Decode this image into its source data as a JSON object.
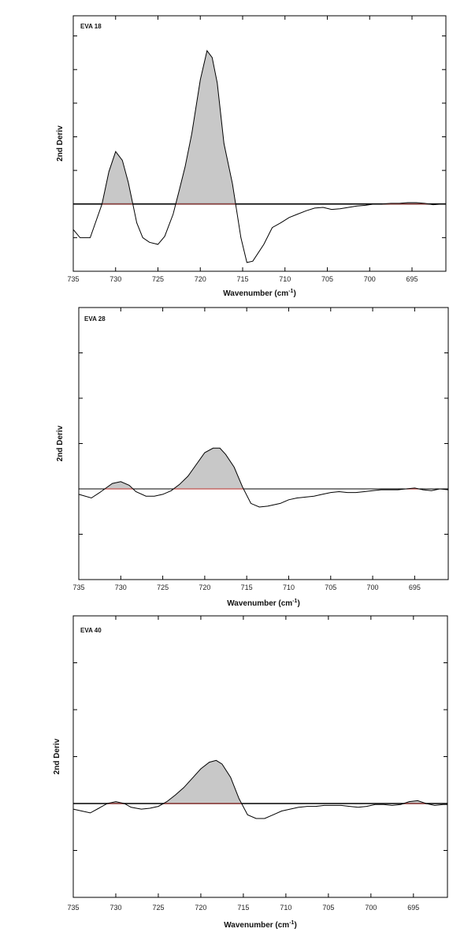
{
  "chart_data": [
    {
      "type": "line",
      "title": "EVA 18",
      "xlabel": "Wavenumber (cm",
      "xlabel_sup": "-1",
      "xlabel_suffix": ")",
      "ylabel": "2nd Deriv",
      "xlim": [
        735,
        691
      ],
      "ylim": [
        -1.0,
        2.8
      ],
      "x_ticks": [
        735,
        730,
        725,
        720,
        715,
        710,
        705,
        700,
        695
      ],
      "y_ticks": [
        -0.5,
        0,
        0.5,
        1.0,
        1.5,
        2.0,
        2.5
      ],
      "baseline": 0,
      "colors": {
        "line": "#000000",
        "fill": "#c8c8c8",
        "baseline_on_fill": "#c0504d"
      },
      "series": [
        {
          "x": [
            735,
            734.2,
            733,
            731.6,
            730.8,
            730,
            729.2,
            728.5,
            727.5,
            726.8,
            726,
            725,
            724.2,
            723.2,
            722.5,
            721.8,
            721,
            720,
            719.2,
            718.6,
            718,
            717.2,
            716.2,
            715.2,
            714.5,
            713.8,
            712.5,
            711.5,
            710.5,
            709.5,
            708.5,
            707.5,
            706.5,
            705.5,
            704.5,
            703.5,
            702.5,
            701.5,
            700.5,
            699.5,
            698.5,
            697.5,
            696.5,
            695.5,
            694.5,
            693.5,
            692.5,
            691.5,
            691
          ],
          "y": [
            -0.38,
            -0.5,
            -0.5,
            0.0,
            0.48,
            0.78,
            0.65,
            0.32,
            -0.28,
            -0.5,
            -0.57,
            -0.6,
            -0.48,
            -0.15,
            0.2,
            0.55,
            1.05,
            1.85,
            2.28,
            2.18,
            1.8,
            0.9,
            0.3,
            -0.5,
            -0.87,
            -0.85,
            -0.6,
            -0.35,
            -0.28,
            -0.2,
            -0.15,
            -0.1,
            -0.06,
            -0.05,
            -0.08,
            -0.07,
            -0.05,
            -0.03,
            -0.02,
            0.0,
            0.0,
            0.01,
            0.01,
            0.02,
            0.02,
            0.01,
            -0.01,
            0.0,
            0.0
          ]
        }
      ]
    },
    {
      "type": "line",
      "title": "EVA 28",
      "xlabel": "Wavenumber (cm",
      "xlabel_sup": "-1",
      "xlabel_suffix": ")",
      "ylabel": "2nd Deriv",
      "xlim": [
        735,
        691
      ],
      "ylim": [
        -1.0,
        2.0
      ],
      "x_ticks": [
        735,
        730,
        725,
        720,
        715,
        710,
        705,
        700,
        695
      ],
      "y_ticks": [
        -0.5,
        0,
        0.5,
        1.0,
        1.5
      ],
      "baseline": 0,
      "colors": {
        "line": "#000000",
        "fill": "#c8c8c8",
        "baseline_on_fill": "#c0504d"
      },
      "series": [
        {
          "x": [
            735,
            733.5,
            732.5,
            731,
            730,
            729,
            728.2,
            727,
            726,
            725,
            724,
            723,
            722,
            721,
            720,
            719,
            718.2,
            717.5,
            716.5,
            715.5,
            714.5,
            713.5,
            712.5,
            711,
            710,
            709,
            708,
            707,
            706,
            705,
            704,
            703,
            702,
            701,
            700,
            699,
            698,
            697,
            696,
            695,
            694,
            693,
            692,
            691
          ],
          "y": [
            -0.06,
            -0.1,
            -0.04,
            0.06,
            0.08,
            0.04,
            -0.03,
            -0.08,
            -0.08,
            -0.06,
            -0.02,
            0.05,
            0.14,
            0.27,
            0.4,
            0.45,
            0.45,
            0.38,
            0.24,
            0.02,
            -0.16,
            -0.2,
            -0.19,
            -0.16,
            -0.12,
            -0.1,
            -0.09,
            -0.08,
            -0.06,
            -0.04,
            -0.03,
            -0.04,
            -0.04,
            -0.03,
            -0.02,
            -0.01,
            -0.01,
            -0.01,
            0.0,
            0.01,
            -0.01,
            -0.02,
            0.0,
            -0.01
          ]
        }
      ]
    },
    {
      "type": "line",
      "title": "EVA 40",
      "xlabel": "Wavenumber (cm",
      "xlabel_sup": "-1",
      "xlabel_suffix": ")",
      "ylabel": "2nd Deriv",
      "xlim": [
        735,
        691
      ],
      "ylim": [
        -1.0,
        2.0
      ],
      "x_ticks": [
        735,
        730,
        725,
        720,
        715,
        710,
        705,
        700,
        695
      ],
      "y_ticks": [
        -0.5,
        0,
        0.5,
        1.0,
        1.5
      ],
      "baseline": 0,
      "colors": {
        "line": "#000000",
        "fill": "#c8c8c8",
        "baseline_on_fill": "#c0504d"
      },
      "series": [
        {
          "x": [
            735,
            734,
            733,
            732,
            731,
            730,
            729,
            728.2,
            727,
            726,
            725,
            724,
            723,
            722,
            721,
            720,
            719,
            718.2,
            717.5,
            716.5,
            715.5,
            714.5,
            713.5,
            712.5,
            711.5,
            710.5,
            709.5,
            708.5,
            707.5,
            706.5,
            705.5,
            704.5,
            703.5,
            702.5,
            701.5,
            700.5,
            699.5,
            698.5,
            697.5,
            696.5,
            695.5,
            694.5,
            693.5,
            692.5,
            691.5,
            691
          ],
          "y": [
            -0.06,
            -0.08,
            -0.1,
            -0.05,
            0.0,
            0.02,
            0.0,
            -0.04,
            -0.06,
            -0.05,
            -0.03,
            0.02,
            0.09,
            0.17,
            0.27,
            0.37,
            0.44,
            0.46,
            0.42,
            0.28,
            0.05,
            -0.12,
            -0.16,
            -0.16,
            -0.12,
            -0.08,
            -0.06,
            -0.04,
            -0.03,
            -0.03,
            -0.02,
            -0.02,
            -0.02,
            -0.03,
            -0.04,
            -0.03,
            -0.01,
            -0.01,
            -0.02,
            -0.01,
            0.02,
            0.03,
            0.0,
            -0.02,
            -0.01,
            -0.01
          ]
        }
      ]
    }
  ]
}
